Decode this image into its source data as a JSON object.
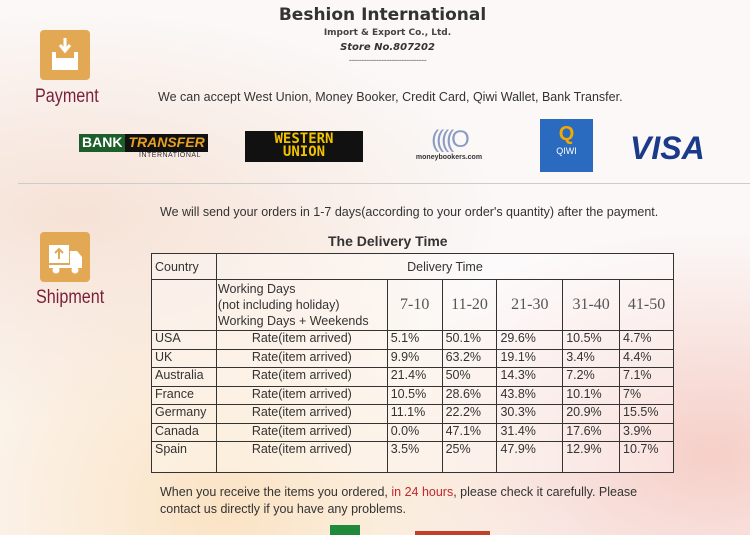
{
  "brand": {
    "name": "Beshion International",
    "subtitle": "Import & Export Co., Ltd.",
    "store": "Store No.807202",
    "separator": "-------------------------------"
  },
  "payment": {
    "label": "Payment",
    "icon": "download-tray-icon",
    "text": "We can accept West Union, Money Booker, Credit Card, Qiwi Wallet, Bank Transfer.",
    "logos": {
      "bank_transfer": [
        "BANK",
        "TRANSFER",
        "INTERNATIONAL"
      ],
      "western_union": [
        "WESTERN",
        "UNION"
      ],
      "moneybookers": "moneybookers.com",
      "qiwi": "QIWI",
      "visa": "VISA"
    }
  },
  "shipment": {
    "label": "Shipment",
    "icon": "truck-icon",
    "text": "We will send your orders in 1-7 days(according to your order's quantity) after the payment.",
    "table_title": "The Delivery Time",
    "table": {
      "country_header": "Country",
      "delivery_header": "Delivery Time",
      "days_label": [
        "Working Days",
        "(not including holiday)",
        "Working Days + Weekends"
      ],
      "ranges": [
        "7-10",
        "11-20",
        "21-30",
        "31-40",
        "41-50"
      ],
      "rows": [
        {
          "country": "USA",
          "label": "Rate(item arrived)",
          "values": [
            "5.1%",
            "50.1%",
            "29.6%",
            "10.5%",
            "4.7%"
          ]
        },
        {
          "country": "UK",
          "label": "Rate(item arrived)",
          "values": [
            "9.9%",
            "63.2%",
            "19.1%",
            "3.4%",
            "4.4%"
          ]
        },
        {
          "country": "Australia",
          "label": "Rate(item arrived)",
          "values": [
            "21.4%",
            "50%",
            "14.3%",
            "7.2%",
            "7.1%"
          ]
        },
        {
          "country": "France",
          "label": "Rate(item arrived)",
          "values": [
            "10.5%",
            "28.6%",
            "43.8%",
            "10.1%",
            "7%"
          ]
        },
        {
          "country": "Germany",
          "label": "Rate(item arrived)",
          "values": [
            "11.1%",
            "22.2%",
            "30.3%",
            "20.9%",
            "15.5%"
          ]
        },
        {
          "country": "Canada",
          "label": "Rate(item arrived)",
          "values": [
            "0.0%",
            "47.1%",
            "31.4%",
            "17.6%",
            "3.9%"
          ]
        },
        {
          "country": "Spain",
          "label": "Rate(item arrived)",
          "values": [
            "3.5%",
            "25%",
            "47.9%",
            "12.9%",
            "10.7%"
          ]
        }
      ]
    },
    "note": {
      "before": "When you receive the items you ordered, ",
      "highlight": "in 24 hours",
      "after": ", please check it carefully. Please contact us directly if you have any problems."
    },
    "highlight_color": "#c0282d"
  }
}
